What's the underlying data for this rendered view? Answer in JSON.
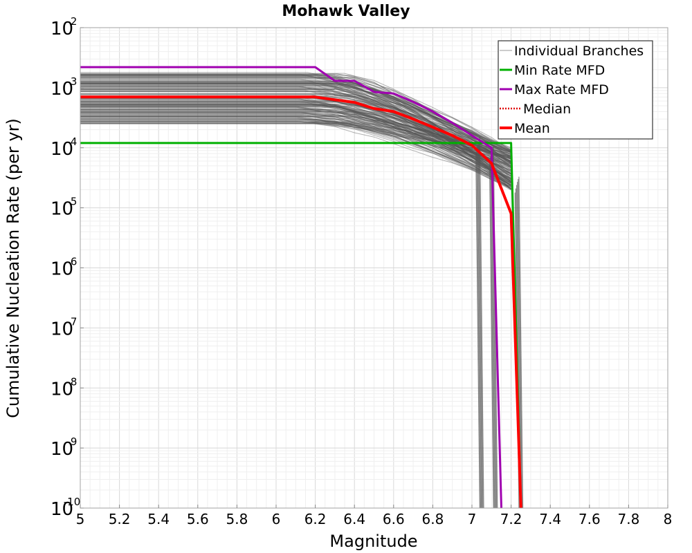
{
  "chart_data": {
    "type": "line",
    "title": "Mohawk Valley",
    "xlabel": "Magnitude",
    "ylabel": "Cumulative Nucleation Rate (per yr)",
    "xlim": [
      5,
      8
    ],
    "ylim": [
      1e-10,
      0.01
    ],
    "yscale": "log",
    "grid": true,
    "legend_position": "top-right",
    "x_ticks": [
      "5",
      "5.2",
      "5.4",
      "5.6",
      "5.8",
      "6",
      "6.2",
      "6.4",
      "6.6",
      "6.8",
      "7",
      "7.2",
      "7.4",
      "7.6",
      "7.8",
      "8"
    ],
    "y_ticks": [
      {
        "base": "10",
        "exp": "-2",
        "value": 0.01
      },
      {
        "base": "10",
        "exp": "-3",
        "value": 0.001
      },
      {
        "base": "10",
        "exp": "-4",
        "value": 0.0001
      },
      {
        "base": "10",
        "exp": "-5",
        "value": 1e-05
      },
      {
        "base": "10",
        "exp": "-6",
        "value": 1e-06
      },
      {
        "base": "10",
        "exp": "-7",
        "value": 1e-07
      },
      {
        "base": "10",
        "exp": "-8",
        "value": 1e-08
      },
      {
        "base": "10",
        "exp": "-9",
        "value": 1e-09
      },
      {
        "base": "10",
        "exp": "-10",
        "value": 1e-10
      }
    ],
    "series": [
      {
        "name": "Min Rate MFD",
        "color": "#00b000",
        "x": [
          5.0,
          6.0,
          7.0,
          7.2,
          7.25
        ],
        "y": [
          0.00012,
          0.00012,
          0.00012,
          0.00012,
          1e-10
        ]
      },
      {
        "name": "Max Rate MFD",
        "color": "#a000b0",
        "x": [
          5.0,
          6.2,
          6.3,
          6.4,
          6.5,
          6.6,
          6.7,
          6.8,
          6.9,
          7.0,
          7.1,
          7.15
        ],
        "y": [
          0.0022,
          0.0022,
          0.0013,
          0.0013,
          0.00085,
          0.0008,
          0.00058,
          0.0004,
          0.00026,
          0.00016,
          0.0001,
          1e-10
        ]
      },
      {
        "name": "Median",
        "color": "#e00000",
        "dashed": true,
        "x": [
          5.0,
          6.2,
          6.3,
          6.4,
          6.5,
          6.6,
          6.7,
          6.8,
          6.9,
          7.0,
          7.1,
          7.2,
          7.25
        ],
        "y": [
          0.0007,
          0.0007,
          0.00063,
          0.00057,
          0.00045,
          0.0004,
          0.0003,
          0.00022,
          0.00016,
          0.00011,
          5.5e-05,
          8e-06,
          1e-10
        ]
      },
      {
        "name": "Mean",
        "color": "#ff0000",
        "x": [
          5.0,
          6.2,
          6.3,
          6.4,
          6.5,
          6.6,
          6.7,
          6.8,
          6.9,
          7.0,
          7.1,
          7.2,
          7.25
        ],
        "y": [
          0.0007,
          0.0007,
          0.00063,
          0.00057,
          0.00045,
          0.0004,
          0.0003,
          0.00022,
          0.00016,
          0.00011,
          5.5e-05,
          8e-06,
          1e-10
        ]
      }
    ],
    "branches": {
      "name": "Individual Branches",
      "color": "#555555",
      "flat_rate_range": [
        0.00025,
        0.0018
      ],
      "rate_at_7_2_range": [
        2e-05,
        0.0001
      ],
      "drop_magnitudes": [
        7.05,
        7.12,
        7.25
      ]
    }
  }
}
